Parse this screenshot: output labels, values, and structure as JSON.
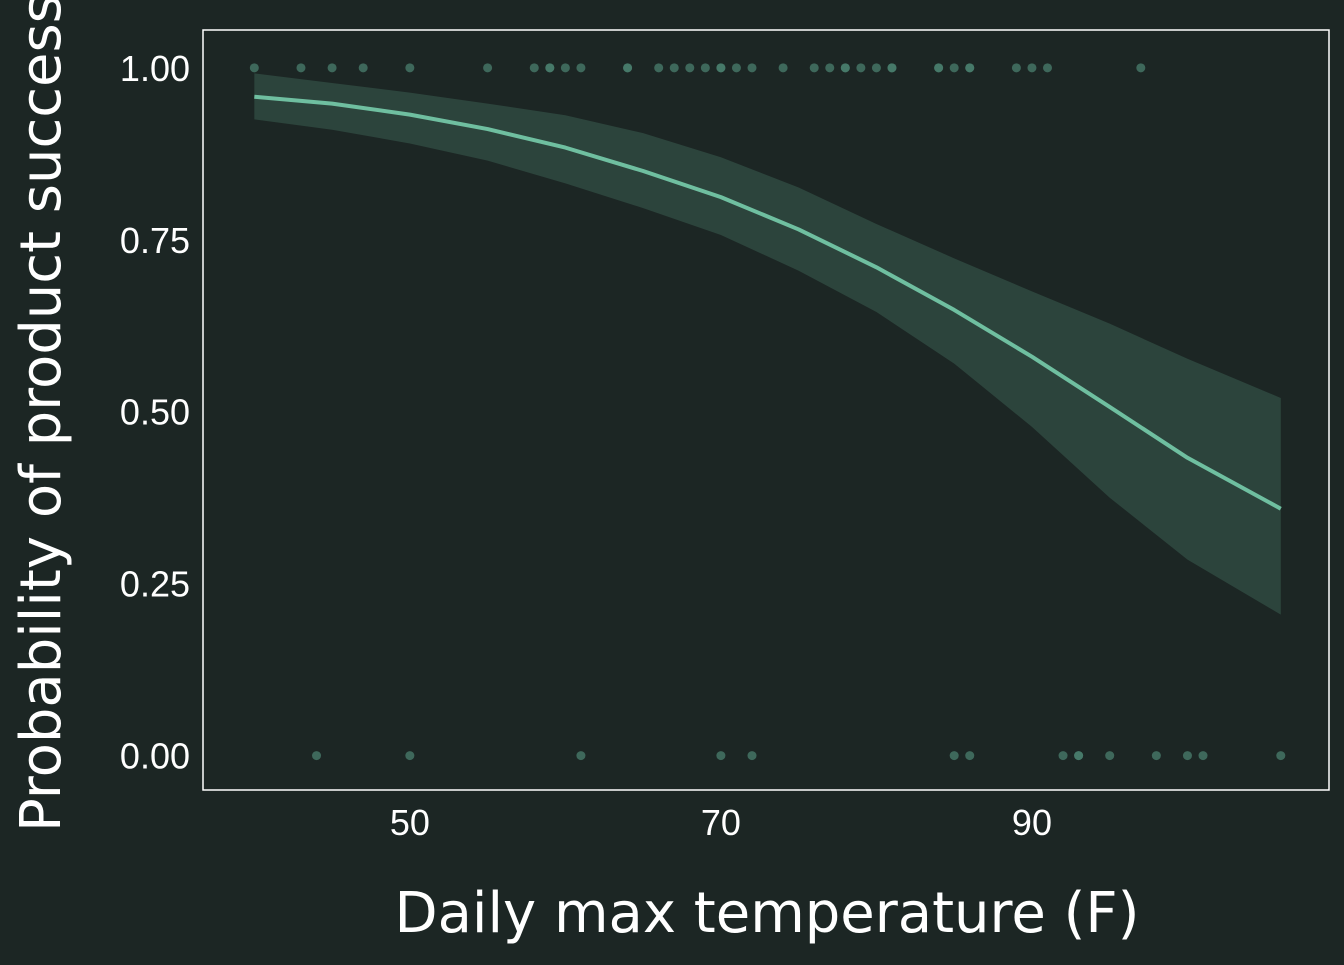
{
  "chart_data": {
    "type": "line",
    "title": "",
    "xlabel": "Daily max temperature (F)",
    "ylabel": "Probability of product success",
    "xlim": [
      36.7,
      109.1
    ],
    "ylim": [
      -0.05,
      1.055
    ],
    "x_ticks": [
      {
        "value": 50,
        "label": "50"
      },
      {
        "value": 70,
        "label": "70"
      },
      {
        "value": 90,
        "label": "90"
      }
    ],
    "y_ticks": [
      {
        "value": 0.0,
        "label": "0.00"
      },
      {
        "value": 0.25,
        "label": "0.25"
      },
      {
        "value": 0.5,
        "label": "0.50"
      },
      {
        "value": 0.75,
        "label": "0.75"
      },
      {
        "value": 1.0,
        "label": "1.00"
      }
    ],
    "grid": false,
    "series": [
      {
        "type": "line",
        "color": "#6fbfa0",
        "x": [
          40,
          45,
          50,
          55,
          60,
          65,
          70,
          75,
          80,
          85,
          90,
          95,
          100,
          106
        ],
        "y": [
          0.958,
          0.948,
          0.932,
          0.911,
          0.884,
          0.85,
          0.812,
          0.765,
          0.71,
          0.648,
          0.58,
          0.507,
          0.433,
          0.359
        ]
      },
      {
        "type": "ribbon",
        "color": "#2c443c",
        "x": [
          40,
          45,
          50,
          55,
          60,
          65,
          70,
          75,
          80,
          85,
          90,
          95,
          100,
          106
        ],
        "y_lower": [
          0.925,
          0.91,
          0.89,
          0.865,
          0.832,
          0.796,
          0.757,
          0.705,
          0.645,
          0.57,
          0.478,
          0.375,
          0.285,
          0.205
        ],
        "y_upper": [
          0.992,
          0.978,
          0.964,
          0.948,
          0.931,
          0.905,
          0.87,
          0.826,
          0.773,
          0.723,
          0.675,
          0.628,
          0.577,
          0.52
        ]
      },
      {
        "type": "scatter",
        "color": "#4a7f6e",
        "points": [
          {
            "x": 40,
            "y": 1
          },
          {
            "x": 43,
            "y": 1
          },
          {
            "x": 45,
            "y": 1
          },
          {
            "x": 47,
            "y": 1
          },
          {
            "x": 50,
            "y": 1
          },
          {
            "x": 55,
            "y": 1
          },
          {
            "x": 58,
            "y": 1
          },
          {
            "x": 59,
            "y": 1
          },
          {
            "x": 59,
            "y": 1
          },
          {
            "x": 60,
            "y": 1
          },
          {
            "x": 61,
            "y": 1
          },
          {
            "x": 64,
            "y": 1
          },
          {
            "x": 64,
            "y": 1
          },
          {
            "x": 66,
            "y": 1
          },
          {
            "x": 67,
            "y": 1
          },
          {
            "x": 68,
            "y": 1
          },
          {
            "x": 69,
            "y": 1
          },
          {
            "x": 70,
            "y": 1
          },
          {
            "x": 70,
            "y": 1
          },
          {
            "x": 71,
            "y": 1
          },
          {
            "x": 72,
            "y": 1
          },
          {
            "x": 74,
            "y": 1
          },
          {
            "x": 76,
            "y": 1
          },
          {
            "x": 77,
            "y": 1
          },
          {
            "x": 78,
            "y": 1
          },
          {
            "x": 78,
            "y": 1
          },
          {
            "x": 79,
            "y": 1
          },
          {
            "x": 80,
            "y": 1
          },
          {
            "x": 81,
            "y": 1
          },
          {
            "x": 81,
            "y": 1
          },
          {
            "x": 84,
            "y": 1
          },
          {
            "x": 84,
            "y": 1
          },
          {
            "x": 85,
            "y": 1
          },
          {
            "x": 86,
            "y": 1
          },
          {
            "x": 86,
            "y": 1
          },
          {
            "x": 89,
            "y": 1
          },
          {
            "x": 90,
            "y": 1
          },
          {
            "x": 91,
            "y": 1
          },
          {
            "x": 97,
            "y": 1
          },
          {
            "x": 44,
            "y": 0
          },
          {
            "x": 50,
            "y": 0
          },
          {
            "x": 61,
            "y": 0
          },
          {
            "x": 70,
            "y": 0
          },
          {
            "x": 72,
            "y": 0
          },
          {
            "x": 85,
            "y": 0
          },
          {
            "x": 86,
            "y": 0
          },
          {
            "x": 92,
            "y": 0
          },
          {
            "x": 93,
            "y": 0
          },
          {
            "x": 93,
            "y": 0
          },
          {
            "x": 95,
            "y": 0
          },
          {
            "x": 98,
            "y": 0
          },
          {
            "x": 100,
            "y": 0
          },
          {
            "x": 101,
            "y": 0
          },
          {
            "x": 106,
            "y": 0
          }
        ]
      }
    ]
  },
  "colors": {
    "background": "#1c2624",
    "panel_border": "#ffffff",
    "text": "#ffffff",
    "line": "#6fbfa0",
    "ribbon": "#2c443c",
    "points": "#4a7f6e"
  }
}
